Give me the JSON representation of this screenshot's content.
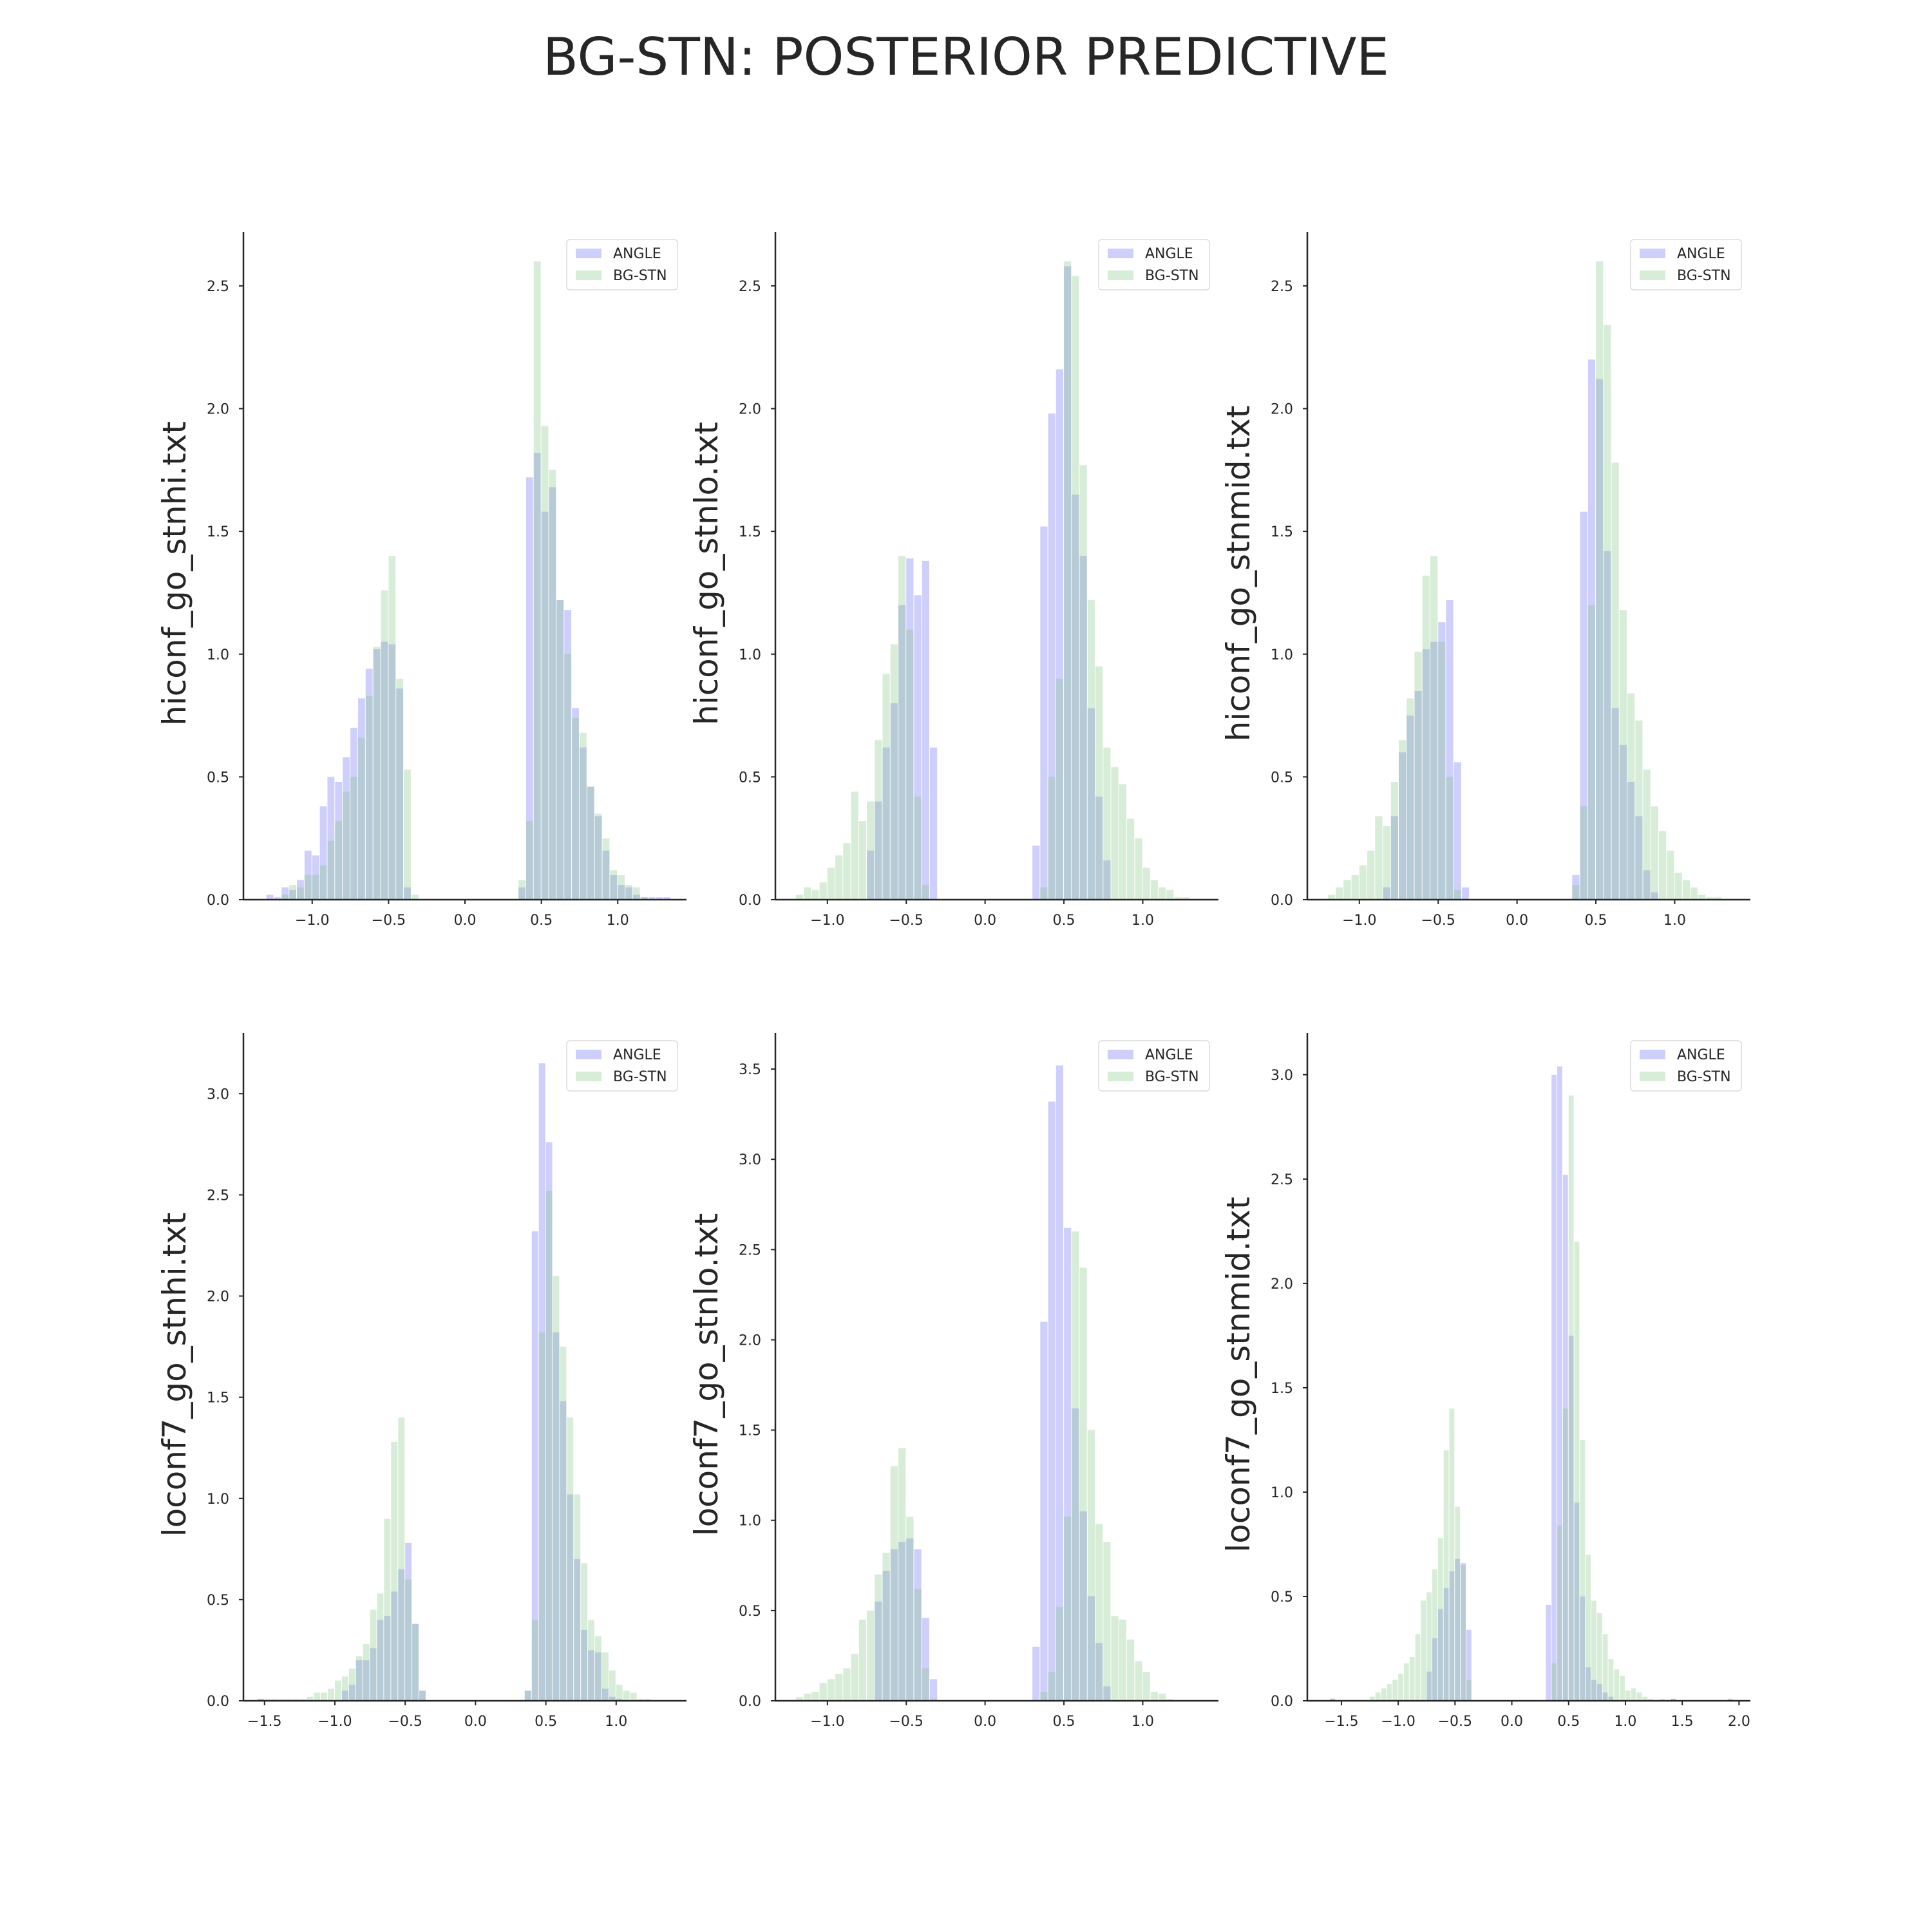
{
  "title": "BG-STN: POSTERIOR PREDICTIVE",
  "colors": {
    "ANGLE": "#5f5ff2",
    "BG-STN": "#7fc27f",
    "bar_opacity": 0.3,
    "axis": "#262626"
  },
  "legend": {
    "placement": "top-right",
    "entries": [
      "ANGLE",
      "BG-STN"
    ]
  },
  "chart_data": [
    {
      "type": "bar",
      "ylabel": "hiconf_go_stnhi.txt",
      "xlim": [
        -1.45,
        1.45
      ],
      "ylim": [
        0,
        2.72
      ],
      "xticks": [
        -1.0,
        -0.5,
        0.0,
        0.5,
        1.0
      ],
      "xtick_labels": [
        "−1.0",
        "−0.5",
        "0.0",
        "0.5",
        "1.0"
      ],
      "yticks": [
        0.0,
        0.5,
        1.0,
        1.5,
        2.0,
        2.5
      ],
      "ytick_labels": [
        "0.0",
        "0.5",
        "1.0",
        "1.5",
        "2.0",
        "2.5"
      ],
      "series": [
        {
          "name": "ANGLE",
          "bin_width": 0.05,
          "bin_starts": [
            -1.3,
            -1.25,
            -1.2,
            -1.15,
            -1.1,
            -1.05,
            -1.0,
            -0.95,
            -0.9,
            -0.85,
            -0.8,
            -0.75,
            -0.7,
            -0.65,
            -0.6,
            -0.55,
            -0.5,
            -0.45,
            -0.4,
            0.35,
            0.4,
            0.45,
            0.5,
            0.55,
            0.6,
            0.65,
            0.7,
            0.75,
            0.8,
            0.85,
            0.9,
            0.95,
            1.0,
            1.05,
            1.1,
            1.15,
            1.2,
            1.25,
            1.3
          ],
          "values": [
            0.02,
            0.01,
            0.05,
            0.04,
            0.08,
            0.2,
            0.18,
            0.38,
            0.5,
            0.48,
            0.58,
            0.7,
            0.82,
            0.94,
            1.02,
            1.05,
            1.04,
            0.86,
            0.05,
            0.05,
            1.72,
            1.82,
            1.58,
            1.68,
            1.22,
            1.18,
            0.78,
            0.62,
            0.46,
            0.34,
            0.2,
            0.1,
            0.06,
            0.05,
            0.02,
            0.01,
            0.01,
            0.01,
            0.01
          ]
        },
        {
          "name": "BG-STN",
          "bin_width": 0.05,
          "bin_starts": [
            -1.2,
            -1.15,
            -1.1,
            -1.05,
            -1.0,
            -0.95,
            -0.9,
            -0.85,
            -0.8,
            -0.75,
            -0.7,
            -0.65,
            -0.6,
            -0.55,
            -0.5,
            -0.45,
            -0.4,
            -0.35,
            0.35,
            0.4,
            0.45,
            0.5,
            0.55,
            0.6,
            0.65,
            0.7,
            0.75,
            0.8,
            0.85,
            0.9,
            0.95,
            1.0,
            1.05,
            1.1,
            1.15
          ],
          "values": [
            0.02,
            0.06,
            0.05,
            0.1,
            0.1,
            0.14,
            0.24,
            0.32,
            0.44,
            0.5,
            0.66,
            0.83,
            1.03,
            1.26,
            1.4,
            0.9,
            0.53,
            0.02,
            0.08,
            0.32,
            2.6,
            1.93,
            1.75,
            1.22,
            1.0,
            0.74,
            0.68,
            0.46,
            0.35,
            0.25,
            0.12,
            0.1,
            0.06,
            0.05,
            0.01
          ]
        }
      ]
    },
    {
      "type": "bar",
      "ylabel": "hiconf_go_stnlo.txt",
      "xlim": [
        -1.33,
        1.48
      ],
      "ylim": [
        0,
        2.72
      ],
      "xticks": [
        -1.0,
        -0.5,
        0.0,
        0.5,
        1.0
      ],
      "xtick_labels": [
        "−1.0",
        "−0.5",
        "0.0",
        "0.5",
        "1.0"
      ],
      "yticks": [
        0.0,
        0.5,
        1.0,
        1.5,
        2.0,
        2.5
      ],
      "ytick_labels": [
        "0.0",
        "0.5",
        "1.0",
        "1.5",
        "2.0",
        "2.5"
      ],
      "series": [
        {
          "name": "ANGLE",
          "bin_width": 0.05,
          "bin_starts": [
            -0.75,
            -0.7,
            -0.65,
            -0.6,
            -0.55,
            -0.5,
            -0.45,
            -0.4,
            -0.35,
            0.3,
            0.35,
            0.4,
            0.45,
            0.5,
            0.55,
            0.6,
            0.65,
            0.7,
            0.75
          ],
          "values": [
            0.2,
            0.4,
            0.62,
            0.8,
            1.2,
            1.39,
            1.24,
            1.38,
            0.62,
            0.22,
            1.52,
            1.98,
            2.16,
            2.58,
            1.65,
            1.4,
            0.78,
            0.42,
            0.16
          ]
        },
        {
          "name": "BG-STN",
          "bin_width": 0.05,
          "bin_starts": [
            -1.2,
            -1.15,
            -1.1,
            -1.05,
            -1.0,
            -0.95,
            -0.9,
            -0.85,
            -0.8,
            -0.75,
            -0.7,
            -0.65,
            -0.6,
            -0.55,
            -0.5,
            -0.45,
            -0.4,
            0.35,
            0.4,
            0.45,
            0.5,
            0.55,
            0.6,
            0.65,
            0.7,
            0.75,
            0.8,
            0.85,
            0.9,
            0.95,
            1.0,
            1.05,
            1.1,
            1.15,
            1.2,
            1.25
          ],
          "values": [
            0.02,
            0.05,
            0.04,
            0.07,
            0.13,
            0.18,
            0.23,
            0.44,
            0.32,
            0.4,
            0.65,
            0.92,
            1.04,
            1.4,
            1.1,
            0.42,
            0.06,
            0.05,
            0.5,
            0.9,
            2.6,
            2.54,
            1.77,
            1.22,
            0.95,
            0.62,
            0.54,
            0.47,
            0.33,
            0.25,
            0.13,
            0.08,
            0.05,
            0.04,
            0.01,
            0.01
          ]
        }
      ]
    },
    {
      "type": "bar",
      "ylabel": "hiconf_go_stnmid.txt",
      "xlim": [
        -1.33,
        1.48
      ],
      "ylim": [
        0,
        2.72
      ],
      "xticks": [
        -1.0,
        -0.5,
        0.0,
        0.5,
        1.0
      ],
      "xtick_labels": [
        "−1.0",
        "−0.5",
        "0.0",
        "0.5",
        "1.0"
      ],
      "yticks": [
        0.0,
        0.5,
        1.0,
        1.5,
        2.0,
        2.5
      ],
      "ytick_labels": [
        "0.0",
        "0.5",
        "1.0",
        "1.5",
        "2.0",
        "2.5"
      ],
      "series": [
        {
          "name": "ANGLE",
          "bin_width": 0.05,
          "bin_starts": [
            -0.85,
            -0.8,
            -0.75,
            -0.7,
            -0.65,
            -0.6,
            -0.55,
            -0.5,
            -0.45,
            -0.4,
            -0.35,
            0.35,
            0.4,
            0.45,
            0.5,
            0.55,
            0.6,
            0.65,
            0.7,
            0.75,
            0.8,
            0.85
          ],
          "values": [
            0.05,
            0.34,
            0.6,
            0.75,
            0.85,
            1.02,
            1.05,
            1.13,
            1.22,
            0.56,
            0.05,
            0.1,
            1.58,
            2.2,
            2.12,
            1.42,
            0.78,
            0.63,
            0.48,
            0.34,
            0.12,
            0.03
          ]
        },
        {
          "name": "BG-STN",
          "bin_width": 0.05,
          "bin_starts": [
            -1.2,
            -1.15,
            -1.1,
            -1.05,
            -1.0,
            -0.95,
            -0.9,
            -0.85,
            -0.8,
            -0.75,
            -0.7,
            -0.65,
            -0.6,
            -0.55,
            -0.5,
            -0.45,
            -0.4,
            0.35,
            0.4,
            0.45,
            0.5,
            0.55,
            0.6,
            0.65,
            0.7,
            0.75,
            0.8,
            0.85,
            0.9,
            0.95,
            1.0,
            1.05,
            1.1,
            1.15,
            1.2,
            1.25
          ],
          "values": [
            0.02,
            0.05,
            0.08,
            0.1,
            0.14,
            0.2,
            0.34,
            0.3,
            0.48,
            0.65,
            0.82,
            1.01,
            1.32,
            1.4,
            1.05,
            0.5,
            0.04,
            0.06,
            0.38,
            1.2,
            2.6,
            2.34,
            1.78,
            1.18,
            0.84,
            0.73,
            0.53,
            0.38,
            0.28,
            0.2,
            0.11,
            0.08,
            0.05,
            0.02,
            0.01,
            0.01
          ]
        }
      ]
    },
    {
      "type": "bar",
      "ylabel": "loconf7_go_stnhi.txt",
      "xlim": [
        -1.65,
        1.5
      ],
      "ylim": [
        0,
        3.3
      ],
      "xticks": [
        -1.5,
        -1.0,
        -0.5,
        0.0,
        0.5,
        1.0
      ],
      "xtick_labels": [
        "−1.5",
        "−1.0",
        "−0.5",
        "0.0",
        "0.5",
        "1.0"
      ],
      "yticks": [
        0.0,
        0.5,
        1.0,
        1.5,
        2.0,
        2.5,
        3.0
      ],
      "ytick_labels": [
        "0.0",
        "0.5",
        "1.0",
        "1.5",
        "2.0",
        "2.5",
        "3.0"
      ],
      "series": [
        {
          "name": "ANGLE",
          "bin_width": 0.05,
          "bin_starts": [
            -1.55,
            -0.95,
            -0.9,
            -0.85,
            -0.8,
            -0.75,
            -0.7,
            -0.65,
            -0.6,
            -0.55,
            -0.5,
            -0.45,
            -0.4,
            0.35,
            0.4,
            0.45,
            0.5,
            0.55,
            0.6,
            0.65,
            0.7,
            0.75,
            0.8,
            0.85,
            0.9,
            0.95,
            1.0
          ],
          "values": [
            0.01,
            0.05,
            0.08,
            0.2,
            0.2,
            0.26,
            0.4,
            0.42,
            0.54,
            0.65,
            0.78,
            0.38,
            0.05,
            0.05,
            2.32,
            3.15,
            2.76,
            1.82,
            1.48,
            1.02,
            0.7,
            0.35,
            0.25,
            0.24,
            0.06,
            0.02,
            0.01
          ]
        },
        {
          "name": "BG-STN",
          "bin_width": 0.05,
          "bin_starts": [
            -1.55,
            -1.5,
            -1.45,
            -1.4,
            -1.35,
            -1.3,
            -1.25,
            -1.2,
            -1.15,
            -1.1,
            -1.05,
            -1.0,
            -0.95,
            -0.9,
            -0.85,
            -0.8,
            -0.75,
            -0.7,
            -0.65,
            -0.6,
            -0.55,
            -0.5,
            -0.45,
            -0.4,
            0.35,
            0.4,
            0.45,
            0.5,
            0.55,
            0.6,
            0.65,
            0.7,
            0.75,
            0.8,
            0.85,
            0.9,
            0.95,
            1.0,
            1.05,
            1.1,
            1.15,
            1.2
          ],
          "values": [
            0.01,
            0.01,
            0.01,
            0.01,
            0.01,
            0.01,
            0.01,
            0.02,
            0.04,
            0.04,
            0.06,
            0.1,
            0.12,
            0.16,
            0.22,
            0.28,
            0.45,
            0.53,
            0.9,
            1.28,
            1.4,
            0.6,
            0.38,
            0.05,
            0.05,
            0.4,
            1.82,
            2.52,
            2.1,
            1.75,
            1.4,
            1.02,
            0.68,
            0.4,
            0.32,
            0.24,
            0.15,
            0.08,
            0.05,
            0.04,
            0.01,
            0.01
          ]
        }
      ]
    },
    {
      "type": "bar",
      "ylabel": "loconf7_go_stnlo.txt",
      "xlim": [
        -1.33,
        1.48
      ],
      "ylim": [
        0,
        3.7
      ],
      "xticks": [
        -1.0,
        -0.5,
        0.0,
        0.5,
        1.0
      ],
      "xtick_labels": [
        "−1.0",
        "−0.5",
        "0.0",
        "0.5",
        "1.0"
      ],
      "yticks": [
        0.0,
        0.5,
        1.0,
        1.5,
        2.0,
        2.5,
        3.0,
        3.5
      ],
      "ytick_labels": [
        "0.0",
        "0.5",
        "1.0",
        "1.5",
        "2.0",
        "2.5",
        "3.0",
        "3.5"
      ],
      "series": [
        {
          "name": "ANGLE",
          "bin_width": 0.05,
          "bin_starts": [
            -0.7,
            -0.65,
            -0.6,
            -0.55,
            -0.5,
            -0.45,
            -0.4,
            -0.35,
            0.3,
            0.35,
            0.4,
            0.45,
            0.5,
            0.55,
            0.6,
            0.65,
            0.7,
            0.75
          ],
          "values": [
            0.55,
            0.72,
            0.84,
            0.88,
            0.9,
            0.84,
            0.46,
            0.12,
            0.3,
            2.1,
            3.32,
            3.52,
            2.62,
            1.62,
            1.05,
            0.58,
            0.32,
            0.08
          ]
        },
        {
          "name": "BG-STN",
          "bin_width": 0.05,
          "bin_starts": [
            -1.2,
            -1.15,
            -1.1,
            -1.05,
            -1.0,
            -0.95,
            -0.9,
            -0.85,
            -0.8,
            -0.75,
            -0.7,
            -0.65,
            -0.6,
            -0.55,
            -0.5,
            -0.45,
            -0.4,
            -0.35,
            0.35,
            0.4,
            0.45,
            0.5,
            0.55,
            0.6,
            0.65,
            0.7,
            0.75,
            0.8,
            0.85,
            0.9,
            0.95,
            1.0,
            1.05,
            1.1,
            1.15
          ],
          "values": [
            0.02,
            0.04,
            0.05,
            0.1,
            0.12,
            0.15,
            0.18,
            0.26,
            0.45,
            0.5,
            0.7,
            0.82,
            1.3,
            1.4,
            1.02,
            0.62,
            0.18,
            0.01,
            0.05,
            0.16,
            0.52,
            1.02,
            2.6,
            2.4,
            1.5,
            0.98,
            0.88,
            0.47,
            0.45,
            0.34,
            0.22,
            0.16,
            0.05,
            0.04,
            0.01
          ]
        }
      ]
    },
    {
      "type": "bar",
      "ylabel": "loconf7_go_stnmid.txt",
      "xlim": [
        -1.8,
        2.1
      ],
      "ylim": [
        0,
        3.2
      ],
      "xticks": [
        -1.5,
        -1.0,
        -0.5,
        0.0,
        0.5,
        1.0,
        1.5,
        2.0
      ],
      "xtick_labels": [
        "−1.5",
        "−1.0",
        "−0.5",
        "0.0",
        "0.5",
        "1.0",
        "1.5",
        "2.0"
      ],
      "yticks": [
        0.0,
        0.5,
        1.0,
        1.5,
        2.0,
        2.5,
        3.0
      ],
      "ytick_labels": [
        "0.0",
        "0.5",
        "1.0",
        "1.5",
        "2.0",
        "2.5",
        "3.0"
      ],
      "series": [
        {
          "name": "ANGLE",
          "bin_width": 0.05,
          "bin_starts": [
            -1.6,
            -0.75,
            -0.7,
            -0.65,
            -0.6,
            -0.55,
            -0.5,
            -0.45,
            -0.4,
            0.3,
            0.35,
            0.4,
            0.45,
            0.5,
            0.55,
            0.6,
            0.65,
            0.7,
            0.75,
            0.8,
            0.85,
            1.4,
            1.9
          ],
          "values": [
            0.01,
            0.14,
            0.3,
            0.44,
            0.54,
            0.62,
            0.68,
            0.66,
            0.34,
            0.46,
            3.0,
            3.04,
            2.52,
            1.75,
            0.95,
            0.5,
            0.16,
            0.1,
            0.08,
            0.04,
            0.02,
            0.01,
            0.01
          ]
        },
        {
          "name": "BG-STN",
          "bin_width": 0.05,
          "bin_starts": [
            -1.6,
            -1.25,
            -1.2,
            -1.15,
            -1.1,
            -1.05,
            -1.0,
            -0.95,
            -0.9,
            -0.85,
            -0.8,
            -0.75,
            -0.7,
            -0.65,
            -0.6,
            -0.55,
            -0.5,
            -0.45,
            -0.4,
            0.35,
            0.4,
            0.45,
            0.5,
            0.55,
            0.6,
            0.65,
            0.7,
            0.75,
            0.8,
            0.85,
            0.9,
            0.95,
            1.0,
            1.05,
            1.1,
            1.15,
            1.2,
            1.3,
            1.4
          ],
          "values": [
            0.01,
            0.02,
            0.04,
            0.06,
            0.08,
            0.1,
            0.13,
            0.18,
            0.21,
            0.32,
            0.48,
            0.52,
            0.63,
            0.78,
            1.2,
            1.4,
            0.93,
            0.65,
            0.1,
            0.18,
            0.84,
            1.4,
            2.9,
            2.2,
            1.25,
            0.7,
            0.48,
            0.42,
            0.32,
            0.2,
            0.15,
            0.12,
            0.05,
            0.06,
            0.04,
            0.02,
            0.01,
            0.01,
            0.01
          ]
        }
      ]
    }
  ]
}
